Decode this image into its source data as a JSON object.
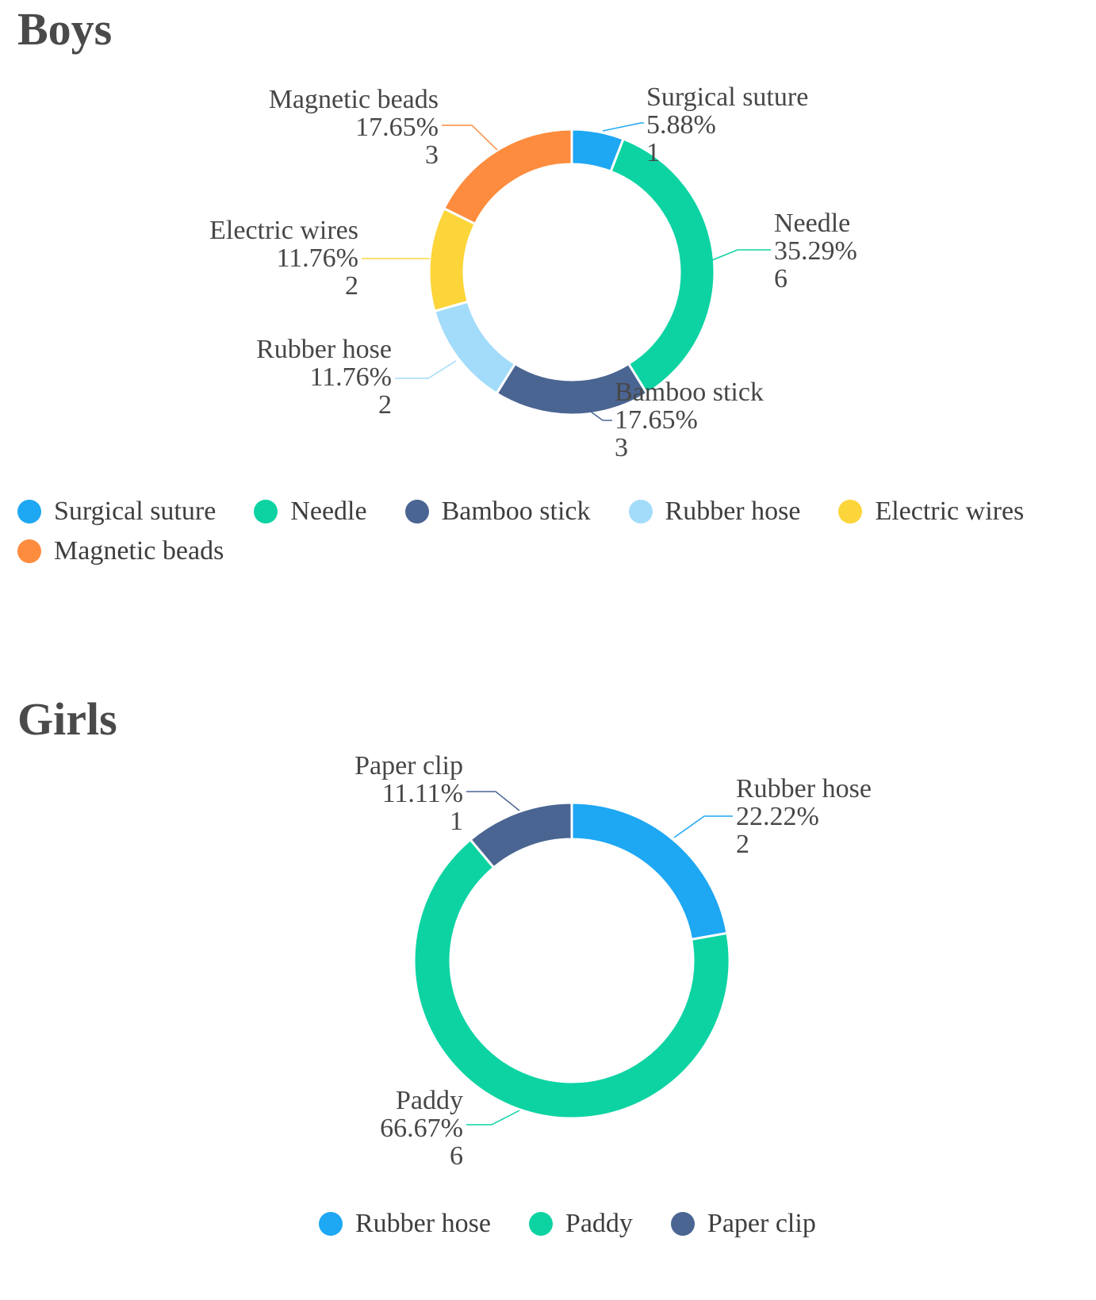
{
  "chart_data": [
    {
      "type": "pie",
      "title": "Boys",
      "categories": [
        "Surgical suture",
        "Needle",
        "Bamboo stick",
        "Rubber hose",
        "Electric wires",
        "Magnetic beads"
      ],
      "values": [
        1,
        6,
        3,
        2,
        2,
        3
      ],
      "percent_labels": [
        "5.88%",
        "35.29%",
        "17.65%",
        "11.76%",
        "11.76%",
        "17.65%"
      ],
      "colors": [
        "#1ea7f2",
        "#0dd3a3",
        "#4a6592",
        "#a3dcfa",
        "#fcd53a",
        "#fd8c3e"
      ],
      "legend": "bottom"
    },
    {
      "type": "pie",
      "title": "Girls",
      "categories": [
        "Rubber hose",
        "Paddy",
        "Paper clip"
      ],
      "values": [
        2,
        6,
        1
      ],
      "percent_labels": [
        "22.22%",
        "66.67%",
        "11.11%"
      ],
      "colors": [
        "#1ea7f2",
        "#0dd3a3",
        "#4a6592"
      ],
      "legend": "bottom"
    }
  ]
}
